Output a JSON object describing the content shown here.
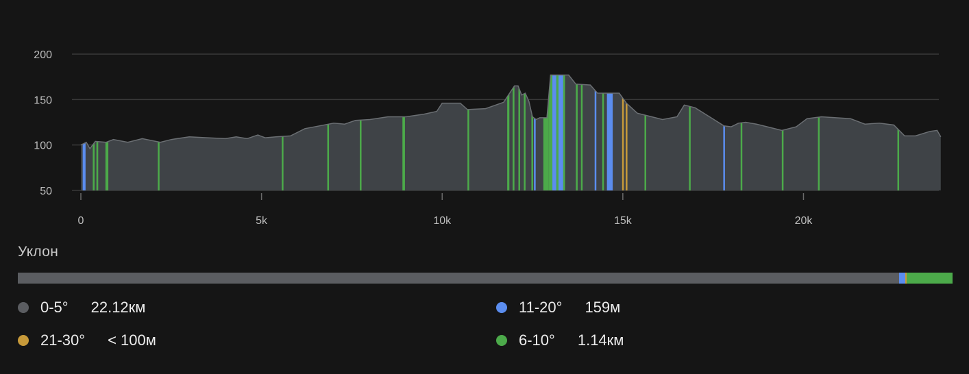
{
  "chart_data": {
    "type": "area",
    "x_unit": "m",
    "y_unit": "m",
    "xlim": [
      0,
      23900
    ],
    "ylim": [
      50,
      200
    ],
    "x_ticks": [
      {
        "value": 0,
        "label": "0"
      },
      {
        "value": 5000,
        "label": "5k"
      },
      {
        "value": 10000,
        "label": "10k"
      },
      {
        "value": 15000,
        "label": "15k"
      },
      {
        "value": 20000,
        "label": "20k"
      }
    ],
    "y_ticks": [
      {
        "value": 200,
        "label": "200"
      },
      {
        "value": 150,
        "label": "150"
      },
      {
        "value": 100,
        "label": "100"
      },
      {
        "value": 50,
        "label": "50"
      }
    ],
    "grid": true,
    "elevation_profile": [
      [
        0,
        100
      ],
      [
        150,
        103
      ],
      [
        250,
        96
      ],
      [
        400,
        104
      ],
      [
        700,
        103
      ],
      [
        900,
        106
      ],
      [
        1300,
        103
      ],
      [
        1700,
        107
      ],
      [
        2200,
        103
      ],
      [
        2500,
        106
      ],
      [
        3000,
        109
      ],
      [
        3500,
        108
      ],
      [
        4000,
        107
      ],
      [
        4300,
        109
      ],
      [
        4600,
        107
      ],
      [
        4900,
        111
      ],
      [
        5100,
        108
      ],
      [
        5400,
        109
      ],
      [
        5800,
        110
      ],
      [
        6200,
        118
      ],
      [
        6600,
        121
      ],
      [
        7000,
        124
      ],
      [
        7300,
        123
      ],
      [
        7600,
        127
      ],
      [
        8000,
        128
      ],
      [
        8500,
        131
      ],
      [
        9000,
        131
      ],
      [
        9500,
        134
      ],
      [
        9850,
        137
      ],
      [
        10000,
        146
      ],
      [
        10500,
        146
      ],
      [
        10700,
        139
      ],
      [
        11200,
        140
      ],
      [
        11700,
        147
      ],
      [
        12000,
        165
      ],
      [
        12100,
        165
      ],
      [
        12200,
        155
      ],
      [
        12300,
        157
      ],
      [
        12400,
        148
      ],
      [
        12500,
        131
      ],
      [
        12600,
        128
      ],
      [
        12700,
        130
      ],
      [
        12900,
        130
      ],
      [
        13000,
        177
      ],
      [
        13500,
        177
      ],
      [
        13700,
        167
      ],
      [
        14100,
        166
      ],
      [
        14300,
        157
      ],
      [
        14900,
        157
      ],
      [
        15100,
        146
      ],
      [
        15400,
        135
      ],
      [
        15800,
        131
      ],
      [
        16100,
        128
      ],
      [
        16500,
        131
      ],
      [
        16700,
        144
      ],
      [
        17000,
        141
      ],
      [
        17400,
        131
      ],
      [
        17800,
        121
      ],
      [
        18000,
        120
      ],
      [
        18200,
        124
      ],
      [
        18400,
        125
      ],
      [
        18700,
        123
      ],
      [
        19000,
        120
      ],
      [
        19400,
        116
      ],
      [
        19800,
        120
      ],
      [
        20100,
        129
      ],
      [
        20500,
        131
      ],
      [
        20900,
        130
      ],
      [
        21300,
        129
      ],
      [
        21700,
        123
      ],
      [
        22100,
        124
      ],
      [
        22500,
        122
      ],
      [
        22800,
        110
      ],
      [
        23100,
        110
      ],
      [
        23500,
        115
      ],
      [
        23700,
        116
      ],
      [
        23800,
        109
      ]
    ],
    "slope_bands": [
      {
        "start": 50,
        "end": 130,
        "category": "11-20°"
      },
      {
        "start": 330,
        "end": 380,
        "category": "6-10°"
      },
      {
        "start": 430,
        "end": 480,
        "category": "6-10°"
      },
      {
        "start": 680,
        "end": 760,
        "category": "6-10°"
      },
      {
        "start": 2130,
        "end": 2170,
        "category": "6-10°"
      },
      {
        "start": 5560,
        "end": 5600,
        "category": "6-10°"
      },
      {
        "start": 6820,
        "end": 6860,
        "category": "6-10°"
      },
      {
        "start": 7720,
        "end": 7760,
        "category": "6-10°"
      },
      {
        "start": 8900,
        "end": 8970,
        "category": "6-10°"
      },
      {
        "start": 10700,
        "end": 10740,
        "category": "6-10°"
      },
      {
        "start": 11800,
        "end": 11860,
        "category": "6-10°"
      },
      {
        "start": 11950,
        "end": 12000,
        "category": "6-10°"
      },
      {
        "start": 12110,
        "end": 12150,
        "category": "6-10°"
      },
      {
        "start": 12260,
        "end": 12300,
        "category": "6-10°"
      },
      {
        "start": 12470,
        "end": 12500,
        "category": "6-10°"
      },
      {
        "start": 12540,
        "end": 12580,
        "category": "11-20°"
      },
      {
        "start": 12800,
        "end": 12950,
        "category": "6-10°"
      },
      {
        "start": 12950,
        "end": 13050,
        "category": "6-10°"
      },
      {
        "start": 13050,
        "end": 13160,
        "category": "11-20°"
      },
      {
        "start": 13160,
        "end": 13220,
        "category": "6-10°"
      },
      {
        "start": 13220,
        "end": 13350,
        "category": "11-20°"
      },
      {
        "start": 13350,
        "end": 13400,
        "category": "6-10°"
      },
      {
        "start": 13700,
        "end": 13750,
        "category": "6-10°"
      },
      {
        "start": 13840,
        "end": 13880,
        "category": "6-10°"
      },
      {
        "start": 14220,
        "end": 14260,
        "category": "11-20°"
      },
      {
        "start": 14430,
        "end": 14470,
        "category": "6-10°"
      },
      {
        "start": 14560,
        "end": 14720,
        "category": "11-20°"
      },
      {
        "start": 14980,
        "end": 15020,
        "category": "21-30°"
      },
      {
        "start": 15080,
        "end": 15120,
        "category": "21-30°"
      },
      {
        "start": 15600,
        "end": 15640,
        "category": "6-10°"
      },
      {
        "start": 16830,
        "end": 16870,
        "category": "6-10°"
      },
      {
        "start": 17780,
        "end": 17820,
        "category": "11-20°"
      },
      {
        "start": 18260,
        "end": 18300,
        "category": "6-10°"
      },
      {
        "start": 19400,
        "end": 19440,
        "category": "6-10°"
      },
      {
        "start": 20400,
        "end": 20440,
        "category": "6-10°"
      },
      {
        "start": 22600,
        "end": 22640,
        "category": "6-10°"
      }
    ]
  },
  "slope_section": {
    "title": "Уклон",
    "bar_segments": [
      {
        "category": "0-5°",
        "fraction": 0.943
      },
      {
        "category": "11-20°",
        "fraction": 0.0065
      },
      {
        "category": "21-30°",
        "fraction": 0.0015
      },
      {
        "category": "6-10°",
        "fraction": 0.049
      }
    ],
    "legend": [
      {
        "key": "gentle",
        "range": "0-5°",
        "value": "22.12км",
        "color": "#5b5d61"
      },
      {
        "key": "steep",
        "range": "11-20°",
        "value": "159м",
        "color": "#5b8def"
      },
      {
        "key": "very-steep",
        "range": "21-30°",
        "value": "< 100м",
        "color": "#c79a3a"
      },
      {
        "key": "moderate",
        "range": "6-10°",
        "value": "1.14км",
        "color": "#4caa4a"
      }
    ]
  },
  "colors": {
    "background": "#151515",
    "area_fill": "#3f4347",
    "area_stroke": "#6b6f73",
    "grid": "#3a3a3a",
    "0-5°": "#5b5d61",
    "6-10°": "#4caa4a",
    "11-20°": "#5b8def",
    "21-30°": "#c79a3a"
  }
}
